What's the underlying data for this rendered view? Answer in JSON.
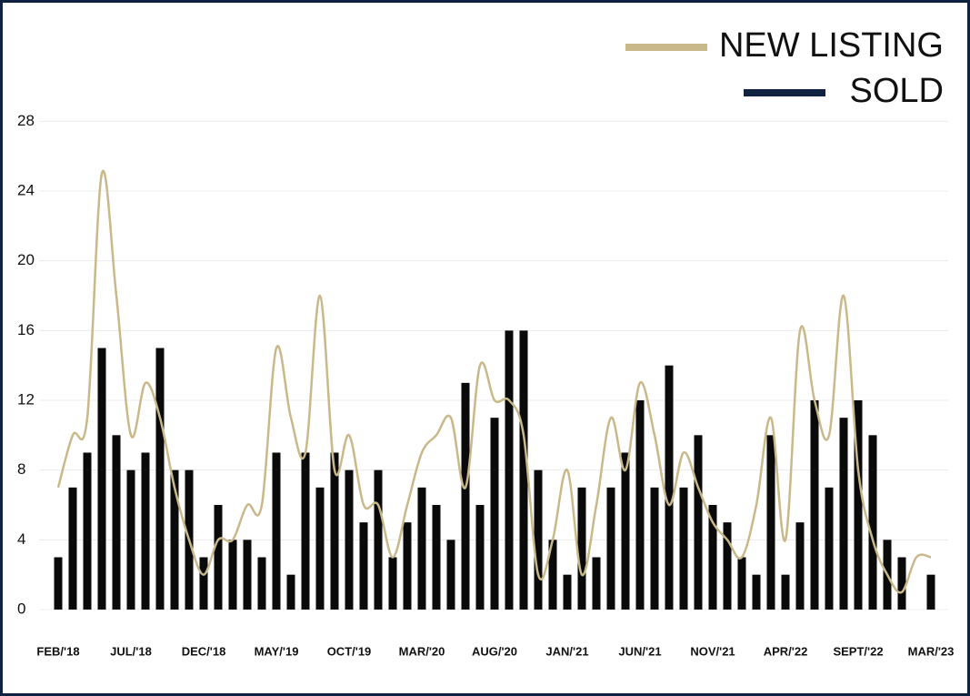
{
  "chart_data": {
    "type": "bar-line",
    "categories": [
      "FEB/'18",
      null,
      null,
      null,
      null,
      "JUL/'18",
      null,
      null,
      null,
      null,
      "DEC/'18",
      null,
      null,
      null,
      null,
      "MAY/'19",
      null,
      null,
      null,
      null,
      "OCT/'19",
      null,
      null,
      null,
      null,
      "MAR/'20",
      null,
      null,
      null,
      null,
      "AUG/'20",
      null,
      null,
      null,
      null,
      "JAN/'21",
      null,
      null,
      null,
      null,
      "JUN/'21",
      null,
      null,
      null,
      null,
      "NOV/'21",
      null,
      null,
      null,
      null,
      "APR/'22",
      null,
      null,
      null,
      null,
      "SEPT/'22",
      null,
      null,
      null,
      null,
      "MAR/'23"
    ],
    "series": [
      {
        "name": "NEW LISTING",
        "color": "#c9b88a",
        "kind": "line",
        "values": [
          7,
          10,
          11,
          25,
          18,
          10,
          13,
          11,
          7,
          4,
          2,
          4,
          4,
          6,
          6,
          15,
          11,
          9,
          18,
          8,
          10,
          6,
          6,
          3,
          6,
          9,
          10,
          11,
          7,
          14,
          12,
          12,
          10,
          2,
          4,
          8,
          2,
          6,
          11,
          8,
          13,
          10,
          6,
          9,
          7,
          5,
          4,
          3,
          6,
          11,
          4,
          16,
          12,
          10,
          18,
          8,
          4,
          2,
          1,
          3,
          3
        ]
      },
      {
        "name": "SOLD",
        "color": "#0a0a0a",
        "kind": "bar",
        "values": [
          3,
          7,
          9,
          15,
          10,
          8,
          9,
          15,
          8,
          8,
          3,
          6,
          4,
          4,
          3,
          9,
          2,
          9,
          7,
          9,
          8,
          5,
          8,
          3,
          5,
          7,
          6,
          4,
          13,
          6,
          11,
          16,
          16,
          8,
          4,
          2,
          7,
          3,
          7,
          9,
          12,
          7,
          14,
          7,
          10,
          6,
          5,
          3,
          2,
          10,
          2,
          5,
          12,
          7,
          11,
          12,
          10,
          4,
          3,
          0,
          2
        ]
      }
    ],
    "legend_colors": [
      "#c9b88a",
      "#0f2340"
    ],
    "ylim": [
      0,
      30
    ],
    "yticks": [
      0,
      4,
      8,
      12,
      16,
      20,
      24,
      28
    ],
    "grid": true
  }
}
